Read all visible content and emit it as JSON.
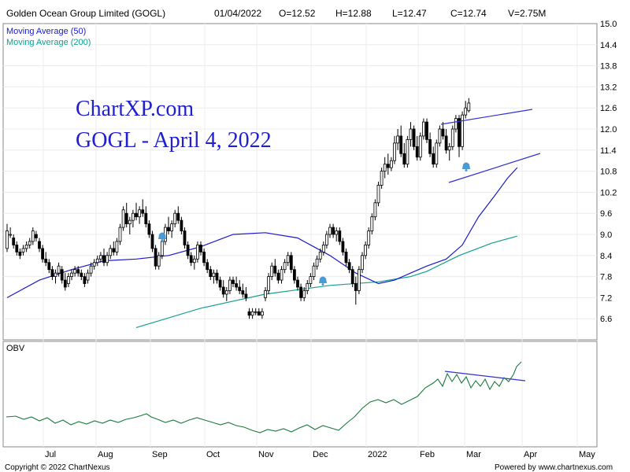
{
  "header": {
    "title": "Golden Ocean Group Limited (GOGL)",
    "date": "01/04/2022",
    "open": "O=12.52",
    "high": "H=12.88",
    "low": "L=12.47",
    "close": "C=12.74",
    "volume": "V=2.75M"
  },
  "watermark": {
    "line1": "ChartXP.com",
    "line2": "GOGL - April 4, 2022"
  },
  "footer": {
    "copyright": "Copyright © 2022 ChartNexus",
    "powered": "Powered by www.chartnexus.com"
  },
  "colors": {
    "ma50": "#1a1acc",
    "ma200": "#12a090",
    "obv": "#1a7a3a",
    "trendline": "#3030d0",
    "alert": "#4a9ad4",
    "candle": "#000000"
  },
  "chart_data": {
    "type": "candlestick",
    "price_axis": {
      "ylim": [
        6.0,
        15.0
      ],
      "ticks": [
        "15.0",
        "14.4",
        "13.8",
        "13.2",
        "12.6",
        "12.0",
        "11.4",
        "10.8",
        "10.2",
        "9.6",
        "9.0",
        "8.4",
        "7.8",
        "7.2",
        "6.6"
      ]
    },
    "x_axis": {
      "ticks": [
        "Jul",
        "Aug",
        "Sep",
        "Oct",
        "Nov",
        "Dec",
        "2022",
        "Feb",
        "Mar",
        "Apr",
        "May"
      ]
    },
    "legend": [
      "Moving Average (50)",
      "Moving Average (200)"
    ],
    "obv_panel": {
      "label": "OBV"
    },
    "series": [
      {
        "name": "Moving Average (50)",
        "points": [
          [
            0,
            7.2
          ],
          [
            10,
            7.7
          ],
          [
            20,
            8.0
          ],
          [
            30,
            8.25
          ],
          [
            40,
            8.3
          ],
          [
            50,
            8.4
          ],
          [
            60,
            8.65
          ],
          [
            70,
            9.0
          ],
          [
            80,
            9.05
          ],
          [
            90,
            8.9
          ],
          [
            100,
            8.4
          ],
          [
            108,
            7.9
          ],
          [
            115,
            7.6
          ],
          [
            120,
            7.7
          ],
          [
            125,
            7.9
          ],
          [
            130,
            8.1
          ],
          [
            136,
            8.3
          ],
          [
            141,
            8.7
          ],
          [
            146,
            9.5
          ],
          [
            151,
            10.1
          ],
          [
            155,
            10.6
          ],
          [
            158,
            10.9
          ]
        ]
      },
      {
        "name": "Moving Average (200)",
        "points": [
          [
            40,
            6.35
          ],
          [
            60,
            6.9
          ],
          [
            80,
            7.3
          ],
          [
            100,
            7.55
          ],
          [
            115,
            7.65
          ],
          [
            125,
            7.8
          ],
          [
            130,
            7.95
          ],
          [
            140,
            8.4
          ],
          [
            150,
            8.75
          ],
          [
            158,
            8.95
          ]
        ]
      }
    ],
    "candles_ohlc": [
      [
        8.6,
        9.3,
        8.5,
        9.1
      ],
      [
        9.0,
        9.2,
        8.9,
        9.0
      ],
      [
        8.9,
        9.0,
        8.6,
        8.7
      ],
      [
        8.7,
        8.8,
        8.4,
        8.5
      ],
      [
        8.5,
        8.6,
        8.3,
        8.4
      ],
      [
        8.5,
        8.7,
        8.4,
        8.6
      ],
      [
        8.6,
        8.8,
        8.5,
        8.7
      ],
      [
        8.7,
        8.9,
        8.6,
        8.8
      ],
      [
        8.8,
        9.2,
        8.7,
        9.1
      ],
      [
        9.0,
        9.1,
        8.8,
        8.9
      ],
      [
        8.8,
        8.9,
        8.5,
        8.6
      ],
      [
        8.6,
        8.7,
        8.2,
        8.3
      ],
      [
        8.3,
        8.5,
        8.1,
        8.2
      ],
      [
        8.2,
        8.3,
        7.9,
        8.0
      ],
      [
        8.0,
        8.1,
        7.7,
        7.8
      ],
      [
        7.8,
        8.0,
        7.6,
        7.9
      ],
      [
        7.9,
        8.2,
        7.8,
        8.1
      ],
      [
        8.0,
        8.1,
        7.6,
        7.7
      ],
      [
        7.7,
        7.9,
        7.4,
        7.5
      ],
      [
        7.6,
        7.9,
        7.5,
        7.8
      ],
      [
        7.8,
        8.0,
        7.7,
        7.9
      ],
      [
        7.9,
        8.1,
        7.8,
        8.0
      ],
      [
        8.0,
        8.1,
        7.8,
        7.9
      ],
      [
        7.9,
        8.0,
        7.7,
        7.8
      ],
      [
        7.8,
        7.9,
        7.5,
        7.6
      ],
      [
        7.7,
        8.0,
        7.6,
        7.9
      ],
      [
        7.9,
        8.2,
        7.8,
        8.1
      ],
      [
        8.1,
        8.3,
        8.0,
        8.2
      ],
      [
        8.2,
        8.4,
        8.1,
        8.3
      ],
      [
        8.3,
        8.5,
        8.2,
        8.4
      ],
      [
        8.4,
        8.6,
        8.1,
        8.2
      ],
      [
        8.2,
        8.5,
        8.1,
        8.4
      ],
      [
        8.4,
        8.7,
        8.3,
        8.6
      ],
      [
        8.6,
        8.8,
        8.4,
        8.5
      ],
      [
        8.5,
        8.9,
        8.4,
        8.8
      ],
      [
        8.8,
        9.3,
        8.7,
        9.2
      ],
      [
        9.2,
        9.8,
        9.1,
        9.7
      ],
      [
        9.6,
        9.9,
        9.2,
        9.3
      ],
      [
        9.3,
        9.5,
        9.0,
        9.4
      ],
      [
        9.4,
        9.7,
        9.2,
        9.6
      ],
      [
        9.6,
        9.9,
        9.4,
        9.5
      ],
      [
        9.5,
        9.8,
        9.3,
        9.7
      ],
      [
        9.7,
        10.0,
        9.5,
        9.6
      ],
      [
        9.6,
        9.8,
        9.2,
        9.3
      ],
      [
        9.3,
        9.4,
        8.9,
        9.0
      ],
      [
        9.0,
        9.1,
        8.5,
        8.6
      ],
      [
        8.6,
        8.7,
        8.0,
        8.1
      ],
      [
        8.1,
        8.5,
        8.0,
        8.4
      ],
      [
        8.4,
        8.9,
        8.3,
        8.8
      ],
      [
        8.8,
        9.3,
        8.7,
        9.2
      ],
      [
        9.2,
        9.5,
        9.0,
        9.1
      ],
      [
        9.1,
        9.4,
        8.9,
        9.3
      ],
      [
        9.3,
        9.7,
        9.2,
        9.6
      ],
      [
        9.6,
        9.8,
        9.3,
        9.4
      ],
      [
        9.4,
        9.5,
        9.0,
        9.1
      ],
      [
        9.1,
        9.2,
        8.6,
        8.7
      ],
      [
        8.7,
        8.8,
        8.3,
        8.4
      ],
      [
        8.4,
        8.5,
        8.1,
        8.2
      ],
      [
        8.2,
        8.4,
        8.0,
        8.3
      ],
      [
        8.3,
        8.8,
        8.2,
        8.7
      ],
      [
        8.7,
        8.8,
        8.4,
        8.5
      ],
      [
        8.5,
        8.6,
        8.1,
        8.2
      ],
      [
        8.2,
        8.3,
        7.9,
        8.0
      ],
      [
        8.0,
        8.1,
        7.7,
        7.8
      ],
      [
        7.8,
        8.0,
        7.6,
        7.9
      ],
      [
        7.9,
        8.0,
        7.6,
        7.7
      ],
      [
        7.7,
        7.8,
        7.4,
        7.5
      ],
      [
        7.5,
        7.7,
        7.2,
        7.3
      ],
      [
        7.3,
        7.5,
        7.1,
        7.4
      ],
      [
        7.4,
        7.8,
        7.3,
        7.7
      ],
      [
        7.7,
        7.8,
        7.5,
        7.6
      ],
      [
        7.6,
        7.8,
        7.4,
        7.5
      ],
      [
        7.5,
        7.7,
        7.3,
        7.4
      ],
      [
        7.4,
        7.6,
        7.2,
        7.3
      ],
      [
        7.3,
        7.5,
        7.1,
        7.2
      ],
      [
        6.8,
        6.9,
        6.6,
        6.7
      ],
      [
        6.7,
        6.9,
        6.6,
        6.8
      ],
      [
        6.8,
        6.9,
        6.7,
        6.8
      ],
      [
        6.8,
        6.9,
        6.7,
        6.7
      ],
      [
        6.7,
        6.9,
        6.6,
        6.8
      ],
      [
        7.2,
        7.5,
        7.1,
        7.4
      ],
      [
        7.4,
        7.9,
        7.3,
        7.8
      ],
      [
        7.8,
        8.2,
        7.7,
        8.1
      ],
      [
        8.1,
        8.3,
        7.8,
        7.9
      ],
      [
        7.9,
        8.0,
        7.6,
        7.7
      ],
      [
        7.7,
        8.1,
        7.6,
        8.0
      ],
      [
        8.0,
        8.3,
        7.9,
        8.2
      ],
      [
        8.2,
        8.5,
        8.1,
        8.4
      ],
      [
        8.4,
        8.5,
        7.9,
        8.0
      ],
      [
        8.0,
        8.1,
        7.6,
        7.7
      ],
      [
        7.7,
        7.8,
        7.4,
        7.5
      ],
      [
        7.5,
        7.6,
        7.1,
        7.2
      ],
      [
        7.2,
        7.5,
        7.1,
        7.4
      ],
      [
        7.4,
        7.7,
        7.3,
        7.6
      ],
      [
        7.6,
        7.9,
        7.5,
        7.8
      ],
      [
        7.8,
        8.2,
        7.7,
        8.1
      ],
      [
        8.1,
        8.4,
        8.0,
        8.3
      ],
      [
        8.3,
        8.6,
        8.2,
        8.5
      ],
      [
        8.5,
        8.8,
        8.4,
        8.7
      ],
      [
        8.7,
        9.1,
        8.6,
        9.0
      ],
      [
        9.0,
        9.3,
        8.9,
        9.2
      ],
      [
        9.2,
        9.3,
        8.9,
        9.0
      ],
      [
        9.0,
        9.2,
        8.8,
        9.1
      ],
      [
        9.1,
        9.2,
        8.7,
        8.8
      ],
      [
        8.8,
        8.9,
        8.4,
        8.5
      ],
      [
        8.5,
        8.6,
        8.1,
        8.2
      ],
      [
        8.2,
        8.3,
        7.9,
        8.0
      ],
      [
        8.0,
        8.1,
        7.5,
        7.6
      ],
      [
        7.6,
        7.8,
        7.0,
        7.4
      ],
      [
        7.4,
        8.1,
        7.3,
        8.0
      ],
      [
        8.0,
        8.5,
        7.9,
        8.4
      ],
      [
        8.4,
        8.8,
        8.3,
        8.7
      ],
      [
        8.7,
        9.2,
        8.6,
        9.1
      ],
      [
        9.1,
        9.6,
        9.0,
        9.5
      ],
      [
        9.5,
        10.0,
        9.4,
        9.9
      ],
      [
        9.9,
        10.5,
        9.8,
        10.4
      ],
      [
        10.4,
        10.9,
        10.3,
        10.8
      ],
      [
        10.8,
        11.2,
        10.6,
        11.0
      ],
      [
        11.0,
        11.3,
        10.7,
        10.9
      ],
      [
        10.9,
        11.2,
        10.8,
        11.1
      ],
      [
        11.1,
        11.8,
        11.0,
        11.6
      ],
      [
        11.6,
        12.0,
        11.4,
        11.8
      ],
      [
        11.8,
        12.1,
        11.2,
        11.3
      ],
      [
        11.3,
        11.6,
        10.9,
        11.0
      ],
      [
        11.0,
        11.8,
        10.9,
        11.7
      ],
      [
        11.7,
        12.2,
        11.5,
        12.0
      ],
      [
        12.0,
        12.1,
        11.4,
        11.5
      ],
      [
        11.5,
        11.8,
        11.1,
        11.2
      ],
      [
        11.2,
        11.9,
        11.1,
        11.8
      ],
      [
        11.8,
        12.3,
        11.7,
        12.2
      ],
      [
        12.2,
        12.3,
        11.6,
        11.7
      ],
      [
        11.7,
        11.9,
        11.2,
        11.3
      ],
      [
        11.3,
        11.5,
        10.9,
        11.0
      ],
      [
        11.0,
        11.7,
        10.9,
        11.6
      ],
      [
        11.6,
        12.1,
        11.5,
        12.0
      ],
      [
        12.0,
        12.2,
        11.7,
        11.8
      ],
      [
        11.8,
        12.0,
        11.3,
        11.4
      ],
      [
        11.4,
        11.6,
        11.1,
        11.5
      ],
      [
        11.5,
        12.1,
        11.4,
        12.0
      ],
      [
        12.0,
        12.4,
        11.9,
        12.3
      ],
      [
        12.3,
        12.4,
        11.2,
        11.5
      ],
      [
        11.5,
        12.5,
        11.4,
        12.4
      ],
      [
        12.4,
        12.8,
        12.3,
        12.6
      ],
      [
        12.52,
        12.88,
        12.47,
        12.74
      ]
    ]
  }
}
